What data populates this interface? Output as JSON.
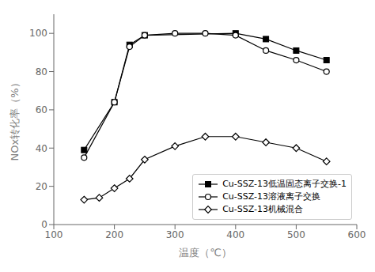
{
  "chart_data": {
    "type": "line",
    "xlabel": "温度（℃）",
    "ylabel": "NOx转化率（%）",
    "xlim": [
      100,
      600
    ],
    "ylim": [
      0,
      110
    ],
    "xticks": [
      100,
      200,
      300,
      400,
      500,
      600
    ],
    "yticks": [
      0,
      20,
      40,
      60,
      80,
      100
    ],
    "grid": false,
    "legend": "lower right",
    "series": [
      {
        "name": "Cu-SSZ-13低温固态离子交换-1",
        "color": "black",
        "marker": "square",
        "x": [
          150,
          200,
          225,
          250,
          400,
          450,
          500,
          550
        ],
        "values": [
          39,
          64,
          94,
          99,
          100,
          97,
          91,
          86
        ]
      },
      {
        "name": "Cu-SSZ-13溶液离子交换",
        "color": "black",
        "marker": "open_circle",
        "x": [
          150,
          200,
          225,
          250,
          300,
          350,
          400,
          450,
          500,
          550
        ],
        "values": [
          35,
          64,
          93,
          99,
          100,
          100,
          99,
          91,
          86,
          80
        ]
      },
      {
        "name": "Cu-SSZ-13机械混合",
        "color": "black",
        "marker": "open_diamond",
        "x": [
          150,
          175,
          200,
          225,
          250,
          300,
          350,
          400,
          450,
          500,
          550
        ],
        "values": [
          13,
          14,
          19,
          24,
          34,
          41,
          46,
          46,
          43,
          40,
          33
        ]
      }
    ]
  }
}
